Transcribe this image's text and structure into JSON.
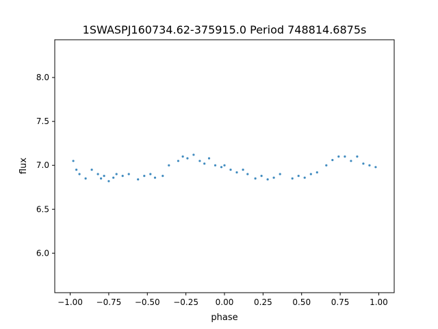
{
  "chart_data": {
    "type": "scatter",
    "title": "1SWASPJ160734.62-375915.0 Period 748814.6875s",
    "xlabel": "phase",
    "ylabel": "flux",
    "xlim": [
      -1.1,
      1.1
    ],
    "ylim": [
      5.55,
      8.43
    ],
    "xticks": [
      -1.0,
      -0.75,
      -0.5,
      -0.25,
      0.0,
      0.25,
      0.5,
      0.75,
      1.0
    ],
    "xtick_labels": [
      "−1.00",
      "−0.75",
      "−0.50",
      "−0.25",
      "0.00",
      "0.25",
      "0.50",
      "0.75",
      "1.00"
    ],
    "yticks": [
      6.0,
      6.5,
      7.0,
      7.5,
      8.0
    ],
    "ytick_labels": [
      "6.0",
      "6.5",
      "7.0",
      "7.5",
      "8.0"
    ],
    "grid": false,
    "point_color": "#1f77b4",
    "series": [
      {
        "x": [
          -0.98,
          -0.96,
          -0.94,
          -0.9,
          -0.86,
          -0.82,
          -0.8,
          -0.78,
          -0.75,
          -0.72,
          -0.7,
          -0.66,
          -0.62,
          -0.56,
          -0.52,
          -0.48,
          -0.45,
          -0.4,
          -0.36,
          -0.3,
          -0.27,
          -0.24,
          -0.2,
          -0.16,
          -0.13,
          -0.1,
          -0.06,
          -0.02,
          0.0,
          0.04,
          0.08,
          0.12,
          0.15,
          0.2,
          0.24,
          0.28,
          0.32,
          0.36,
          0.44,
          0.48,
          0.52,
          0.56,
          0.6,
          0.66,
          0.7,
          0.74,
          0.78,
          0.82,
          0.86,
          0.9,
          0.94,
          0.98
        ],
        "y": [
          7.05,
          6.95,
          6.9,
          6.85,
          6.95,
          6.9,
          6.85,
          6.88,
          6.82,
          6.86,
          6.9,
          6.88,
          6.9,
          6.84,
          6.88,
          6.9,
          6.86,
          6.88,
          7.0,
          7.05,
          7.1,
          7.08,
          7.12,
          7.05,
          7.02,
          7.08,
          7.0,
          6.98,
          7.0,
          6.95,
          6.92,
          6.95,
          6.9,
          6.85,
          6.88,
          6.84,
          6.86,
          6.9,
          6.85,
          6.88,
          6.86,
          6.9,
          6.92,
          7.0,
          7.06,
          7.1,
          7.1,
          7.05,
          7.1,
          7.02,
          7.0,
          6.98
        ]
      }
    ]
  }
}
